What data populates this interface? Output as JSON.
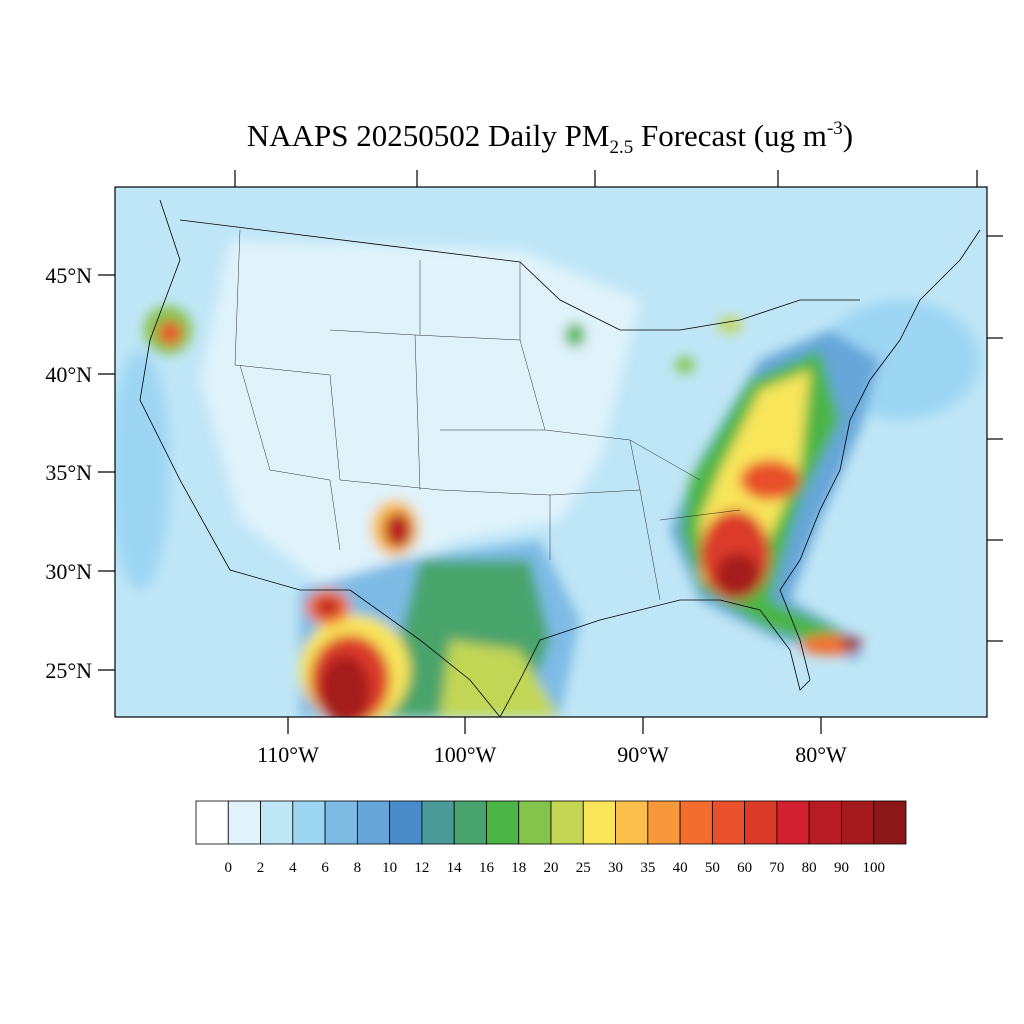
{
  "header": {
    "title": "NAAPS 20250502 Daily PM",
    "title_subscript": "2.5",
    "title_after": " Forecast (ug m",
    "title_superscript": "-3",
    "title_end": ")"
  },
  "map": {
    "lat_labels": [
      "45°N",
      "40°N",
      "35°N",
      "30°N",
      "25°N"
    ],
    "lon_labels": [
      "110°W",
      "100°W",
      "90°W",
      "80°W"
    ]
  },
  "colorbar": {
    "labels": [
      0,
      2,
      4,
      6,
      8,
      10,
      12,
      14,
      16,
      18,
      20,
      25,
      30,
      35,
      40,
      50,
      60,
      70,
      80,
      90,
      100
    ],
    "colors": [
      "#ffffff",
      "#e0f3fb",
      "#bfe6f6",
      "#9dd6f3",
      "#7dbbe5",
      "#66a6d9",
      "#4a8bc9",
      "#4a9a9a",
      "#48a46c",
      "#4bb546",
      "#85c44b",
      "#c2d654",
      "#f8e55a",
      "#f9bf4a",
      "#f7983c",
      "#f46d2f",
      "#e9502b",
      "#dc3a29",
      "#d22030",
      "#b81b24",
      "#a51a1e",
      "#8b1719"
    ]
  }
}
